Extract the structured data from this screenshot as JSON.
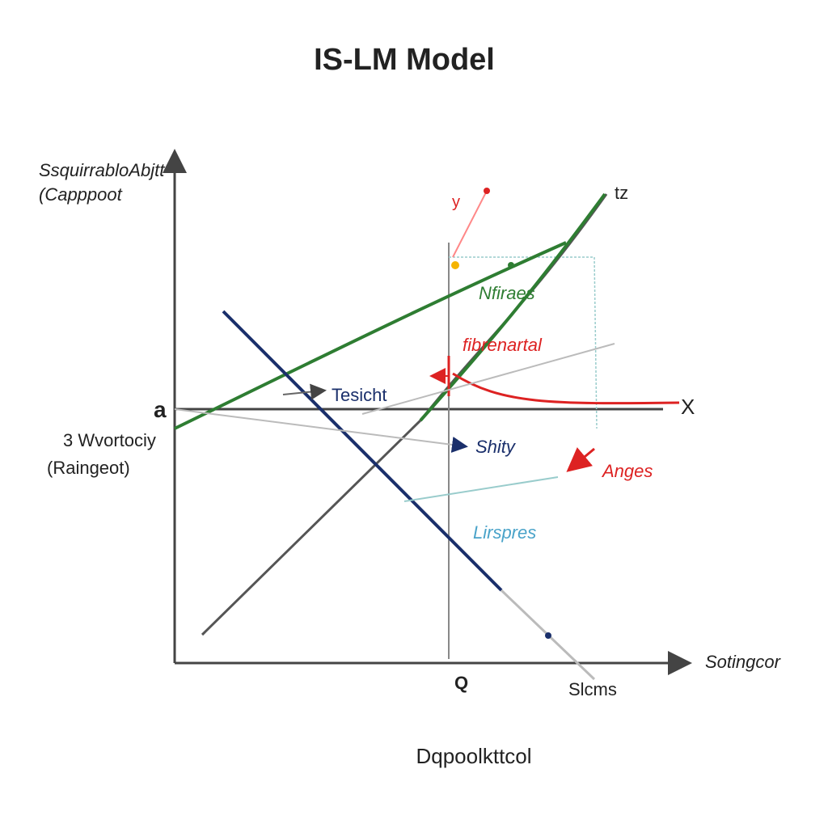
{
  "title": "IS-LM Model",
  "y_axis": {
    "label_lines": [
      "SsquirrabloAbjtt",
      "(Capppoot"
    ]
  },
  "x_axis": {
    "label": "Sotingcor",
    "footer": "Dqpoolkttcol"
  },
  "left_labels": {
    "a": "a",
    "lines": [
      "3 Wvortociy",
      "(Raingeot)"
    ]
  },
  "annotations": {
    "y": "y",
    "tz": "tz",
    "nfiraes": "Nfiraes",
    "fibrenartal": "fibrenartal",
    "tesicht": "Tesicht",
    "x": "X",
    "shity": "Shity",
    "anges": "Anges",
    "lirspres": "Lirspres",
    "q": "Q",
    "slcms": "Slcms"
  }
}
